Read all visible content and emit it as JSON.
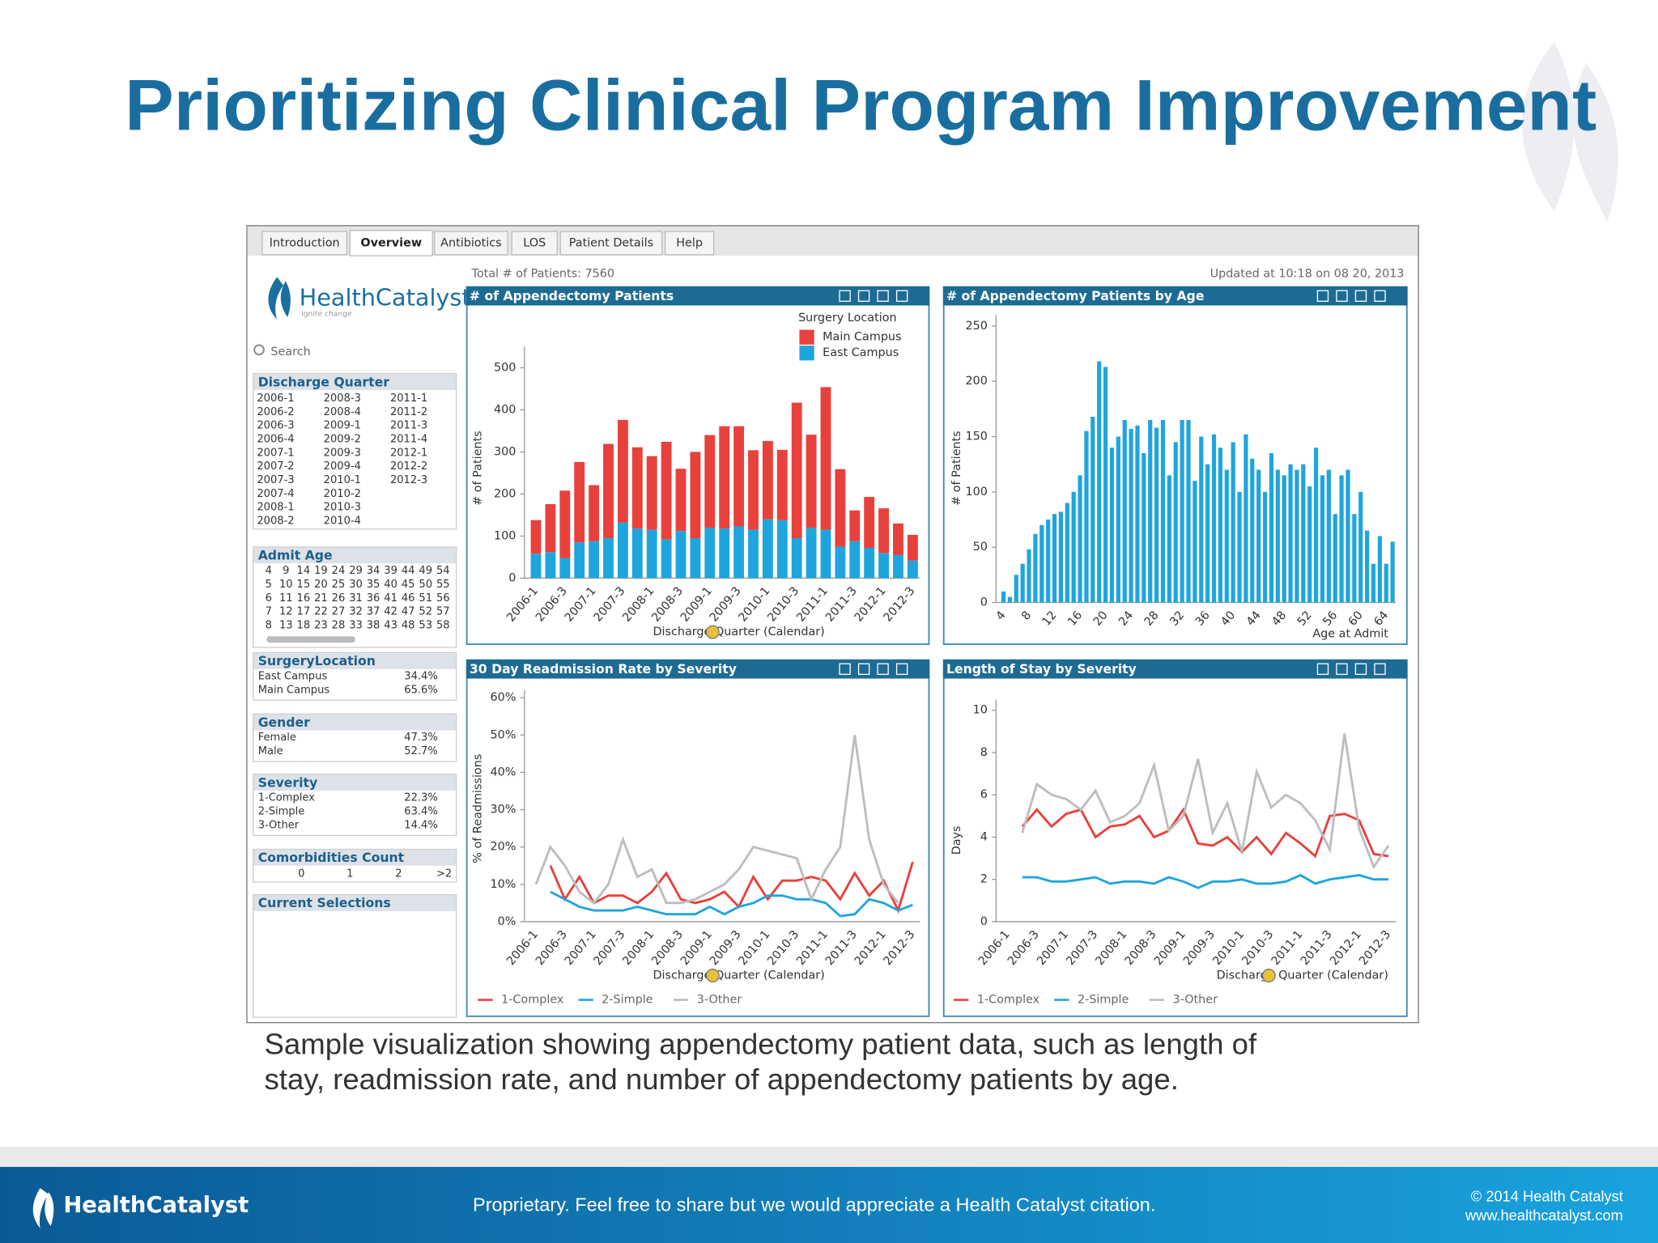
{
  "slide": {
    "title": "Prioritizing Clinical Program Improvement",
    "caption": [
      "Sample visualization showing appendectomy patient data, such as length of",
      "stay, readmission rate, and number of appendectomy patients by age."
    ],
    "footer": {
      "logo": "HealthCatalyst",
      "notice": "Proprietary. Feel free to share but we would appreciate a Health Catalyst citation.",
      "copyright": "© 2014 Health Catalyst",
      "url": "www.healthcatalyst.com"
    }
  },
  "dashboard": {
    "tabs": [
      "Introduction",
      "Overview",
      "Antibiotics",
      "LOS",
      "Patient Details",
      "Help"
    ],
    "total_patients": "Total # of Patients: 7560",
    "updated": "Updated at 10:18 on 08 20, 2013",
    "logo": "HealthCatalyst",
    "tagline": "ignite change",
    "search": "Search",
    "filters": {
      "discharge_quarter": {
        "title": "Discharge Quarter",
        "items": [
          "2006-1",
          "2006-2",
          "2006-3",
          "2006-4",
          "2007-1",
          "2007-2",
          "2007-3",
          "2007-4",
          "2008-1",
          "2008-2",
          "2008-3",
          "2008-4",
          "2009-1",
          "2009-2",
          "2009-3",
          "2009-4",
          "2010-1",
          "2010-2",
          "2010-3",
          "2010-4",
          "2011-1",
          "2011-2",
          "2011-3",
          "2011-4",
          "2012-1",
          "2012-2",
          "2012-3"
        ]
      },
      "admit_age": {
        "title": "Admit Age",
        "items": [
          4,
          5,
          6,
          7,
          8,
          9,
          10,
          11,
          12,
          13,
          14,
          15,
          16,
          17,
          18,
          19,
          20,
          21,
          22,
          23,
          24,
          25,
          26,
          27,
          28,
          29,
          30,
          31,
          32,
          33,
          34,
          35,
          36,
          37,
          38,
          39,
          40,
          41,
          42,
          43,
          44,
          45,
          46,
          47,
          48,
          49,
          50,
          51,
          52,
          53,
          54,
          55,
          56,
          57,
          58
        ]
      },
      "surgery_location": {
        "title": "SurgeryLocation",
        "rows": [
          [
            "East Campus",
            "34.4%"
          ],
          [
            "Main Campus",
            "65.6%"
          ]
        ]
      },
      "gender": {
        "title": "Gender",
        "rows": [
          [
            "Female",
            "47.3%"
          ],
          [
            "Male",
            "52.7%"
          ]
        ]
      },
      "severity": {
        "title": "Severity",
        "rows": [
          [
            "1-Complex",
            "22.3%"
          ],
          [
            "2-Simple",
            "63.4%"
          ],
          [
            "3-Other",
            "14.4%"
          ]
        ]
      },
      "comorbidities": {
        "title": "Comorbidities Count",
        "items": [
          "0",
          "1",
          "2",
          ">2"
        ]
      },
      "current_selections": {
        "title": "Current Selections"
      }
    }
  },
  "chart_data": [
    {
      "type": "bar",
      "stacked": true,
      "title": "# of Appendectomy Patients",
      "ylabel": "# of Patients",
      "xlabel": "Discharge Quarter (Calendar)",
      "legend_title": "Surgery Location",
      "categories": [
        "2006-1",
        null,
        "2006-3",
        null,
        "2007-1",
        null,
        "2007-3",
        null,
        "2008-1",
        null,
        "2008-3",
        null,
        "2009-1",
        null,
        "2009-3",
        null,
        "2010-1",
        null,
        "2010-3",
        null,
        "2011-1",
        null,
        "2011-3",
        null,
        "2012-1",
        null,
        "2012-3"
      ],
      "series": [
        {
          "name": "East Campus",
          "color": "#1fa5dd",
          "values": [
            58,
            62,
            48,
            85,
            88,
            95,
            132,
            118,
            115,
            92,
            112,
            95,
            120,
            118,
            123,
            115,
            140,
            138,
            95,
            120,
            115,
            75,
            88,
            72,
            60,
            55,
            42
          ]
        },
        {
          "name": "Main Campus",
          "color": "#e8413c",
          "values": [
            80,
            114,
            160,
            191,
            133,
            224,
            244,
            193,
            175,
            232,
            148,
            205,
            220,
            243,
            238,
            189,
            186,
            167,
            322,
            221,
            339,
            184,
            73,
            121,
            106,
            75,
            61
          ]
        }
      ],
      "ylim": [
        0,
        550
      ],
      "yticks": [
        0,
        100,
        200,
        300,
        400,
        500
      ]
    },
    {
      "type": "bar",
      "title": "# of Appendectomy Patients by Age",
      "ylabel": "# of Patients",
      "xlabel": "Age at Admit",
      "color": "#1fa5dd",
      "categories": [
        4,
        null,
        null,
        null,
        8,
        null,
        null,
        null,
        12,
        null,
        null,
        null,
        16,
        null,
        null,
        null,
        20,
        null,
        null,
        null,
        24,
        null,
        null,
        null,
        28,
        null,
        null,
        null,
        32,
        null,
        null,
        null,
        36,
        null,
        null,
        null,
        40,
        null,
        null,
        null,
        44,
        null,
        null,
        null,
        48,
        null,
        null,
        null,
        52,
        null,
        null,
        null,
        56,
        null,
        null,
        null,
        60,
        null,
        null,
        null,
        64,
        null
      ],
      "values": [
        10,
        5,
        25,
        35,
        48,
        62,
        70,
        75,
        80,
        82,
        90,
        100,
        115,
        155,
        168,
        218,
        213,
        140,
        150,
        165,
        157,
        160,
        135,
        165,
        158,
        165,
        115,
        145,
        165,
        165,
        110,
        150,
        125,
        152,
        140,
        120,
        145,
        100,
        152,
        130,
        120,
        100,
        135,
        120,
        115,
        125,
        120,
        125,
        105,
        140,
        115,
        120,
        80,
        115,
        120,
        80,
        100,
        65,
        35,
        60,
        35,
        55
      ],
      "ylim": [
        0,
        260
      ],
      "yticks": [
        0,
        50,
        100,
        150,
        200,
        250
      ]
    },
    {
      "type": "line",
      "title": "30 Day Readmission Rate by Severity",
      "ylabel": "% of Readmissions",
      "xlabel": "Discharge Quarter (Calendar)",
      "categories": [
        "2006-1",
        null,
        "2006-3",
        null,
        "2007-1",
        null,
        "2007-3",
        null,
        "2008-1",
        null,
        "2008-3",
        null,
        "2009-1",
        null,
        "2009-3",
        null,
        "2010-1",
        null,
        "2010-3",
        null,
        "2011-1",
        null,
        "2011-3",
        null,
        "2012-1",
        null,
        "2012-3"
      ],
      "series": [
        {
          "name": "1-Complex",
          "color": "#e8413c",
          "values": [
            null,
            15,
            6,
            12,
            5,
            7,
            7,
            5,
            8,
            13,
            6,
            5,
            6,
            8,
            4,
            12,
            6,
            11,
            11,
            12,
            11,
            6,
            13,
            7,
            11,
            3,
            16
          ]
        },
        {
          "name": "2-Simple",
          "color": "#1fa5dd",
          "values": [
            null,
            8,
            6,
            4,
            3,
            3,
            3,
            4,
            3,
            2,
            2,
            2,
            4,
            2,
            4,
            5,
            7,
            7,
            6,
            6,
            5,
            1.5,
            2,
            6,
            5,
            3,
            4.5
          ]
        },
        {
          "name": "3-Other",
          "color": "#bdbdbd",
          "values": [
            10,
            20,
            15,
            8,
            5,
            10,
            22,
            12,
            14,
            5,
            5,
            6,
            8,
            10,
            14,
            20,
            19,
            18,
            17,
            6,
            14,
            20,
            50,
            22,
            10,
            5,
            null
          ]
        }
      ],
      "ylim": [
        0,
        62
      ],
      "yticks": [
        {
          "value": 0,
          "label": "0%"
        },
        {
          "value": 10,
          "label": "10%"
        },
        {
          "value": 20,
          "label": "20%"
        },
        {
          "value": 30,
          "label": "30%"
        },
        {
          "value": 40,
          "label": "40%"
        },
        {
          "value": 50,
          "label": "50%"
        },
        {
          "value": 60,
          "label": "60%"
        }
      ]
    },
    {
      "type": "line",
      "title": "Length of Stay by Severity",
      "ylabel": "Days",
      "xlabel": "Discharge Quarter (Calendar)",
      "categories": [
        "2006-1",
        null,
        "2006-3",
        null,
        "2007-1",
        null,
        "2007-3",
        null,
        "2008-1",
        null,
        "2008-3",
        null,
        "2009-1",
        null,
        "2009-3",
        null,
        "2010-1",
        null,
        "2010-3",
        null,
        "2011-1",
        null,
        "2011-3",
        null,
        "2012-1",
        null,
        "2012-3"
      ],
      "series": [
        {
          "name": "1-Complex",
          "color": "#e8413c",
          "values": [
            null,
            4.5,
            5.3,
            4.5,
            5.1,
            5.3,
            4,
            4.5,
            4.6,
            5,
            4,
            4.3,
            5.3,
            3.7,
            3.6,
            4,
            3.3,
            4,
            3.2,
            4.2,
            3.7,
            3.1,
            5,
            5.1,
            4.8,
            3.2,
            3.1
          ]
        },
        {
          "name": "2-Simple",
          "color": "#1fa5dd",
          "values": [
            null,
            2.1,
            2.1,
            1.9,
            1.9,
            2,
            2.1,
            1.8,
            1.9,
            1.9,
            1.8,
            2.1,
            1.9,
            1.6,
            1.9,
            1.9,
            2,
            1.8,
            1.8,
            1.9,
            2.2,
            1.8,
            2,
            2.1,
            2.2,
            2,
            2
          ]
        },
        {
          "name": "3-Other",
          "color": "#bdbdbd",
          "values": [
            null,
            4.2,
            6.5,
            6,
            5.8,
            5.3,
            6.2,
            4.7,
            5,
            5.6,
            7.4,
            4.3,
            5,
            7.7,
            4.2,
            5.6,
            3.3,
            7.1,
            5.4,
            6,
            5.6,
            4.8,
            3.4,
            8.9,
            4.4,
            2.6,
            3.6
          ]
        }
      ],
      "ylim": [
        0,
        10.5
      ],
      "yticks": [
        0,
        2,
        4,
        6,
        8,
        10
      ]
    }
  ]
}
